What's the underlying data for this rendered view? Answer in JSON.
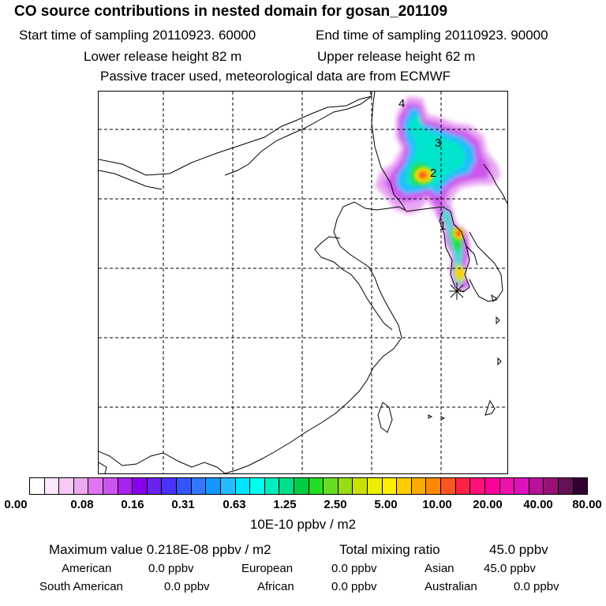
{
  "header": {
    "title": "CO  source contributions in nested domain for gosan_201109",
    "start_time": "Start time of sampling 20110923. 60000",
    "end_time": "End time of sampling 20110923. 90000",
    "lower_release": "Lower release height   82 m",
    "upper_release": "Upper release height   62 m",
    "tracer_note": "Passive tracer used, meteorological data are from ECMWF"
  },
  "map": {
    "labels": [
      "4",
      "3",
      "2",
      "1"
    ],
    "receptor_marker": "receptor-star"
  },
  "colorbar": {
    "ticks": [
      "0.00",
      "0.08",
      "0.16",
      "0.31",
      "0.63",
      "1.25",
      "2.50",
      "5.00",
      "10.00",
      "20.00",
      "40.00",
      "80.00"
    ],
    "unit": "10E-10 ppbv / m2",
    "colors": [
      "#ffffff",
      "#fce8fc",
      "#f5c8f5",
      "#eeaaf0",
      "#dd77f0",
      "#cc55ee",
      "#aa22ee",
      "#8800ee",
      "#6a22ee",
      "#4a33ff",
      "#3355ff",
      "#3377ff",
      "#1199ff",
      "#22bbff",
      "#00e5ff",
      "#00ffee",
      "#00eebb",
      "#00dd88",
      "#00cc44",
      "#22dd22",
      "#66dd22",
      "#99dd11",
      "#cce000",
      "#eeee00",
      "#ffee00",
      "#ffcc00",
      "#ffaa00",
      "#ff8800",
      "#ff5522",
      "#ff2244",
      "#ff1177",
      "#ff0099",
      "#ee11aa",
      "#dd11bb",
      "#bb1199",
      "#991177",
      "#661155",
      "#330033"
    ]
  },
  "stats": {
    "max_label": "Maximum value  0.218E-08 ppbv / m2",
    "total_label": "Total mixing ratio",
    "total_value": "45.0 ppbv",
    "american_label": "American",
    "american_value": "0.0 ppbv",
    "european_label": "European",
    "european_value": "0.0 ppbv",
    "asian_label": "Asian",
    "asian_value": "45.0 ppbv",
    "south_american_label": "South American",
    "south_american_value": "0.0 ppbv",
    "african_label": "African",
    "african_value": "0.0 ppbv",
    "australian_label": "Australian",
    "australian_value": "0.0 ppbv"
  }
}
